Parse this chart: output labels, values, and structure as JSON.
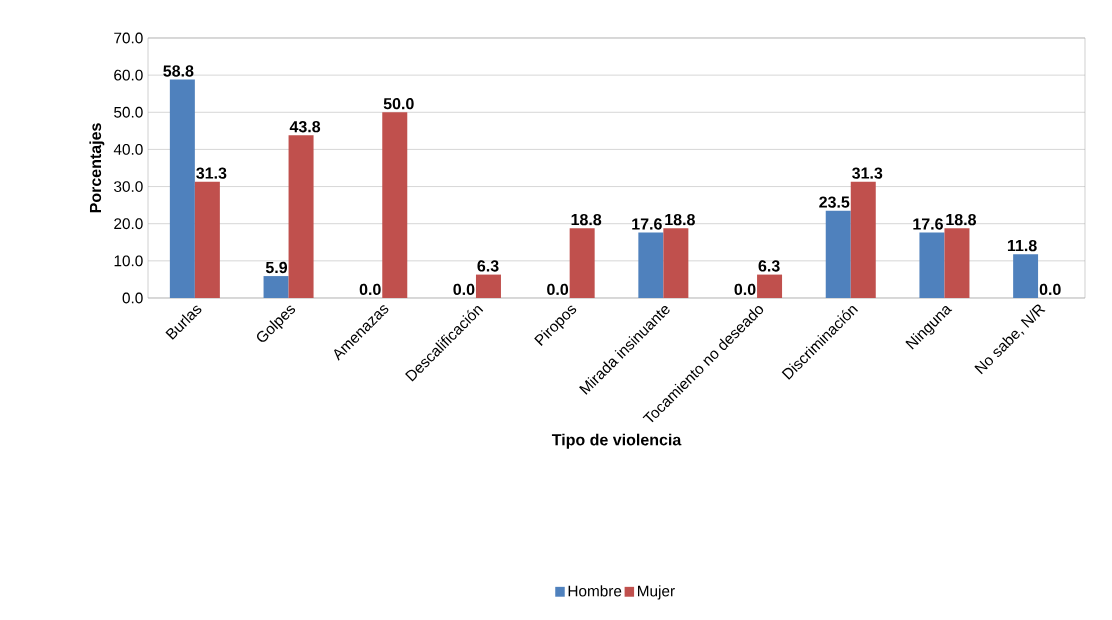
{
  "chart_data": {
    "type": "bar",
    "xlabel": "Tipo de violencia",
    "ylabel": "Porcentajes",
    "categories": [
      "Burlas",
      "Golpes",
      "Amenazas",
      "Descalificación",
      "Piropos",
      "Mirada insinuante",
      "Tocamiento no deseado",
      "Discriminación",
      "Ninguna",
      "No sabe, N/R"
    ],
    "series": [
      {
        "name": "Hombre",
        "color": "#4f81bd",
        "values": [
          58.8,
          5.9,
          0.0,
          0.0,
          0.0,
          17.6,
          0.0,
          23.5,
          17.6,
          11.8
        ],
        "value_labels": [
          "58.8",
          "5.9",
          "0.0",
          "0.0",
          "0.0",
          "17.6",
          "0.0",
          "23.5",
          "17.6",
          "11.8"
        ]
      },
      {
        "name": "Mujer",
        "color": "#c0504d",
        "values": [
          31.3,
          43.8,
          50.0,
          6.3,
          18.8,
          18.8,
          6.3,
          31.3,
          18.8,
          0.0
        ],
        "value_labels": [
          "31.3",
          "43.8",
          "50.0",
          "6.3",
          "18.8",
          "18.8",
          "6.3",
          "31.3",
          "18.8",
          "0.0"
        ]
      }
    ],
    "ylim": [
      0,
      70
    ],
    "yticks": [
      {
        "value": 0,
        "label": "0.0"
      },
      {
        "value": 10,
        "label": "10.0"
      },
      {
        "value": 20,
        "label": "20.0"
      },
      {
        "value": 30,
        "label": "30.0"
      },
      {
        "value": 40,
        "label": "40.0"
      },
      {
        "value": 50,
        "label": "50.0"
      },
      {
        "value": 60,
        "label": "60.0"
      },
      {
        "value": 70,
        "label": "70.0"
      }
    ],
    "grid": "y",
    "legend": "bottom"
  }
}
